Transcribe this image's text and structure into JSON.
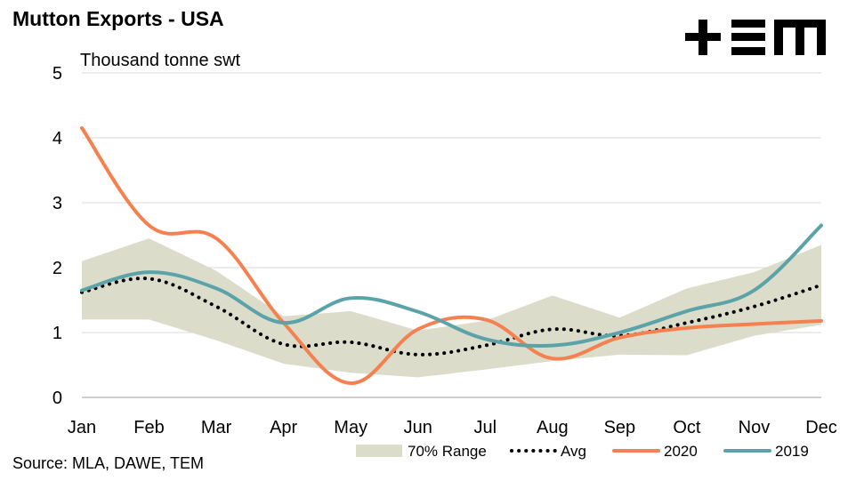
{
  "title": "Mutton Exports - USA",
  "unit_label": "Thousand tonne swt",
  "source": "Source: MLA, DAWE, TEM",
  "logo": {
    "name": "tem-logo",
    "text": "+TEM",
    "color": "#000000"
  },
  "chart_data": {
    "type": "line",
    "categories": [
      "Jan",
      "Feb",
      "Mar",
      "Apr",
      "May",
      "Jun",
      "Jul",
      "Aug",
      "Sep",
      "Oct",
      "Nov",
      "Dec"
    ],
    "ylim": [
      0,
      5
    ],
    "yticks": [
      0,
      1,
      2,
      3,
      4,
      5
    ],
    "grid": true,
    "legend_position": "bottom",
    "range": {
      "name": "70% Range",
      "color": "#dcdccb",
      "lower": [
        1.2,
        1.2,
        0.88,
        0.52,
        0.38,
        0.31,
        0.43,
        0.56,
        0.66,
        0.65,
        0.95,
        1.12
      ],
      "upper": [
        2.1,
        2.45,
        1.95,
        1.25,
        1.33,
        1.03,
        1.18,
        1.57,
        1.23,
        1.68,
        1.93,
        2.35
      ]
    },
    "series": [
      {
        "name": "Avg",
        "color": "#000000",
        "style": "dotted",
        "values": [
          1.62,
          1.83,
          1.4,
          0.82,
          0.85,
          0.66,
          0.8,
          1.05,
          0.95,
          1.15,
          1.4,
          1.73
        ]
      },
      {
        "name": "2020",
        "color": "#f58050",
        "style": "solid",
        "values": [
          4.15,
          2.65,
          2.45,
          1.15,
          0.22,
          1.05,
          1.2,
          0.6,
          0.92,
          1.07,
          1.13,
          1.18
        ]
      },
      {
        "name": "2019",
        "color": "#5ba3a8",
        "style": "solid",
        "values": [
          1.65,
          1.93,
          1.68,
          1.15,
          1.53,
          1.32,
          0.9,
          0.8,
          1.0,
          1.33,
          1.65,
          2.65
        ]
      }
    ]
  }
}
